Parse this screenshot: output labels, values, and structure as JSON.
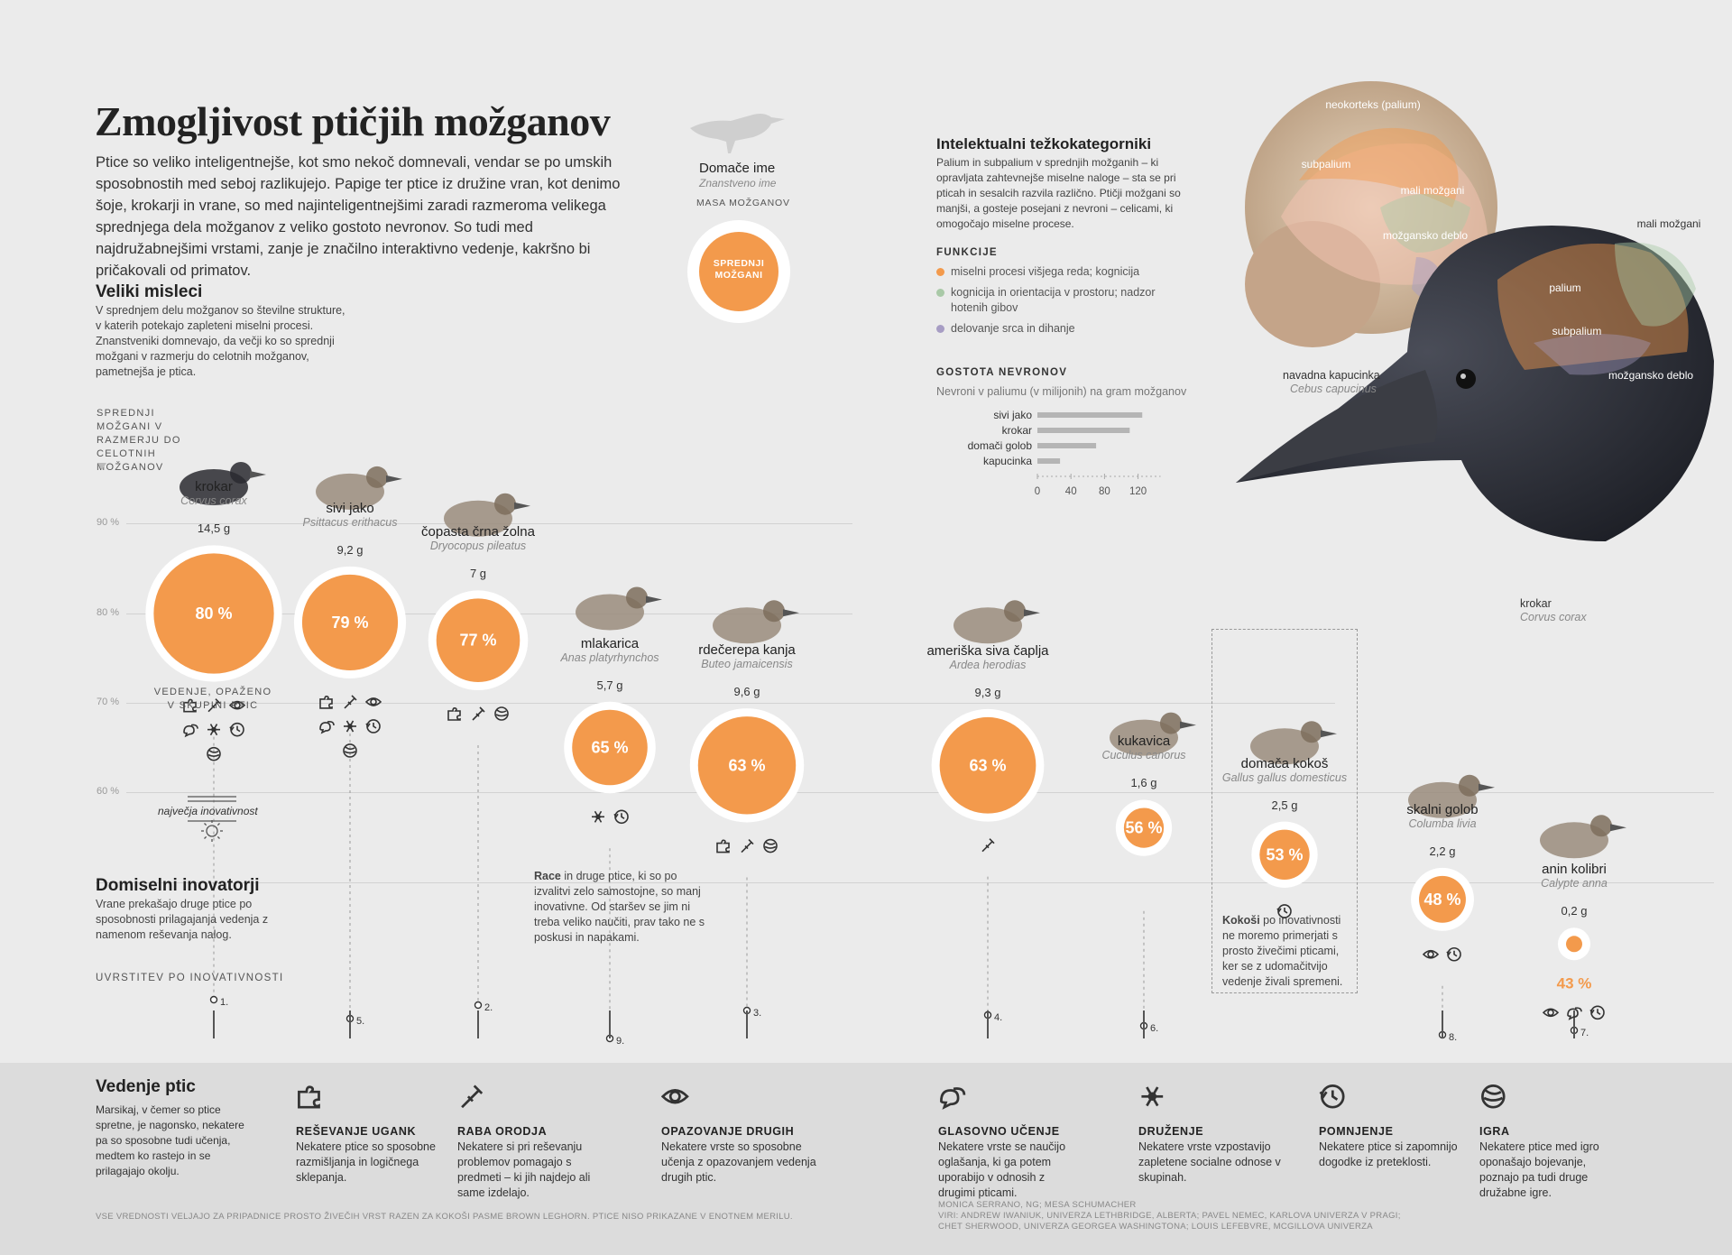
{
  "header": {
    "title": "Zmogljivost ptičjih možganov",
    "intro": "Ptice so veliko inteligentnejše, kot smo nekoč domnevali, vendar se po umskih sposobnostih med seboj razlikujejo. Papige ter ptice iz družine vran, kot denimo šoje, krokarji in vrane, so med najinteligentnejšimi zaradi razmeroma velikega sprednjega dela možganov z veliko gostoto nevronov. So tudi med najdružabnejšimi vrstami, zanje je značilno interaktivno vedenje, kakršno bi pričakovali od primatov."
  },
  "key": {
    "common_name": "Domače ime",
    "latin_name": "Znanstveno ime",
    "mass_label": "MASA MOŽGANOV",
    "circle_label": "SPREDNJI MOŽGANI"
  },
  "thinkers": {
    "title": "Veliki misleci",
    "text": "V sprednjem delu možganov so številne strukture, v katerih potekajo zapleteni miselni procesi. Znanstveniki domnevajo, da večji ko so sprednji možgani v razmerju do celotnih možganov, pametnejša je ptica."
  },
  "innovators": {
    "title": "Domiselni inovatorji",
    "text": "Vrane prekašajo druge ptice po sposobnosti prilagajanja vedenja z namenom reševanja nalog."
  },
  "heavyweights": {
    "title": "Intelektualni težkokategorniki",
    "text": "Palium in subpalium v sprednjih možganih – ki opravljata zahtevnejše miselne naloge – sta se pri pticah in sesalcih razvila različno. Ptičji možgani so manjši, a gosteje posejani z nevroni – celicami, ki omogočajo miselne procese.",
    "functions_title": "FUNKCIJE",
    "functions": [
      {
        "text": "miselni procesi višjega reda; kognicija",
        "color": "#f39a4c"
      },
      {
        "text": "kognicija in orientacija v prostoru; nadzor hotenih gibov",
        "color": "#a9c9a7"
      },
      {
        "text": "delovanje srca in dihanje",
        "color": "#a79dc4"
      }
    ]
  },
  "brain_labels": {
    "neocortex": "neokorteks (palium)",
    "subpalium": "subpalium",
    "mali": "mali možgani",
    "deblo": "možgansko deblo",
    "monkey_name": "navadna kapucinka",
    "monkey_latin": "Cebus capucinus",
    "crow_mali": "mali možgani",
    "crow_palium": "palium",
    "crow_subpalium": "subpalium",
    "crow_deblo": "možgansko deblo",
    "crow_name": "krokar",
    "crow_latin": "Corvus corax"
  },
  "y_axis": {
    "title": "SPREDNJI MOŽGANI V RAZMERJU DO CELOTNIH MOŽGANOV",
    "ticks": [
      "90 %",
      "80 %",
      "70 %",
      "60 %"
    ]
  },
  "birds": [
    {
      "name": "krokar",
      "latin": "Corvus corax",
      "mass": "14,5 g",
      "pct_label": "80 %",
      "icons": [
        "puzzle-icon",
        "tool-icon",
        "eye-icon",
        "speech-icon",
        "social-icon",
        "memory-icon",
        "play-icon"
      ],
      "rank": "1."
    },
    {
      "name": "sivi jako",
      "latin": "Psittacus erithacus",
      "mass": "9,2 g",
      "pct_label": "79 %",
      "icons": [
        "puzzle-icon",
        "tool-icon",
        "eye-icon",
        "speech-icon",
        "social-icon",
        "memory-icon",
        "play-icon"
      ],
      "rank": "5."
    },
    {
      "name": "čopasta črna žolna",
      "latin": "Dryocopus pileatus",
      "mass": "7 g",
      "pct_label": "77 %",
      "icons": [
        "puzzle-icon",
        "tool-icon",
        "play-icon"
      ],
      "rank": "2."
    },
    {
      "name": "mlakarica",
      "latin": "Anas platyrhynchos",
      "mass": "5,7 g",
      "pct_label": "65 %",
      "icons": [
        "social-icon",
        "memory-icon"
      ],
      "rank": "9."
    },
    {
      "name": "rdečerepa kanja",
      "latin": "Buteo jamaicensis",
      "mass": "9,6 g",
      "pct_label": "63 %",
      "icons": [
        "puzzle-icon",
        "tool-icon",
        "play-icon"
      ],
      "rank": "3."
    },
    {
      "name": "ameriška siva čaplja",
      "latin": "Ardea herodias",
      "mass": "9,3 g",
      "pct_label": "63 %",
      "icons": [
        "tool-icon"
      ],
      "rank": "4."
    },
    {
      "name": "kukavica",
      "latin": "Cuculus canorus",
      "mass": "1,6 g",
      "pct_label": "56 %",
      "icons": [],
      "rank": "6."
    },
    {
      "name": "domača kokoš",
      "latin": "Gallus gallus domesticus",
      "mass": "2,5 g",
      "pct_label": "53 %",
      "icons": [
        "memory-icon"
      ],
      "rank": ""
    },
    {
      "name": "skalni golob",
      "latin": "Columba livia",
      "mass": "2,2 g",
      "pct_label": "48 %",
      "icons": [
        "eye-icon",
        "memory-icon"
      ],
      "rank": "8."
    },
    {
      "name": "anin kolibri",
      "latin": "Calypte anna",
      "mass": "0,2 g",
      "pct_label": "43 %",
      "icons": [
        "eye-icon",
        "speech-icon",
        "memory-icon"
      ],
      "rank": "7."
    }
  ],
  "chart_notes": {
    "observed": "VEDENJE, OPAŽENO V SKUPINI PTIC",
    "most_innovative": "največja inovativnost",
    "rank_title": "UVRSTITEV PO INOVATIVNOSTI",
    "race_bold": "Race",
    "race_text": " in druge ptice, ki so po izvalitvi zelo samostojne, so manj inovativne. Od staršev se jim ni treba veliko naučiti, prav tako ne s poskusi in napakami.",
    "hen_bold": "Kokoši",
    "hen_text": " po inovativnosti ne moremo primerjati s prosto živečimi pticami, ker se z udomačitvijo vedenje živali spremeni."
  },
  "density_chart_labels": {
    "title": "GOSTOTA NEVRONOV",
    "subtitle": "Nevroni v paliumu (v milijonih) na gram možganov",
    "ticks": [
      "0",
      "40",
      "80",
      "120"
    ]
  },
  "chart_data": [
    {
      "type": "scatter",
      "title": "",
      "ylabel": "SPREDNJI MOŽGANI V RAZMERJU DO CELOTNIH MOŽGANOV",
      "ylim": [
        40,
        92
      ],
      "categories": [
        "krokar",
        "sivi jako",
        "čopasta črna žolna",
        "mlakarica",
        "rdečerepa kanja",
        "ameriška siva čaplja",
        "kukavica",
        "domača kokoš",
        "skalni golob",
        "anin kolibri"
      ],
      "forebrain_pct": [
        80,
        79,
        77,
        65,
        63,
        63,
        56,
        53,
        48,
        43
      ],
      "brain_mass_g": [
        14.5,
        9.2,
        7,
        5.7,
        9.6,
        9.3,
        1.6,
        2.5,
        2.2,
        0.2
      ],
      "innovation_rank": [
        1,
        5,
        2,
        9,
        3,
        4,
        6,
        null,
        8,
        7
      ]
    },
    {
      "type": "bar",
      "title": "GOSTOTA NEVRONOV",
      "xlabel": "Nevroni v paliumu (v milijonih) na gram možganov",
      "categories": [
        "sivi jako",
        "krokar",
        "domači golob",
        "kapucinka"
      ],
      "values": [
        125,
        110,
        70,
        27
      ],
      "xlim": [
        0,
        120
      ]
    }
  ],
  "behaviours": {
    "title": "Vedenje ptic",
    "intro": "Marsikaj, v čemer so ptice spretne, je nagonsko, nekatere pa so sposobne tudi učenja, medtem ko rastejo in se prilagajajo okolju.",
    "items": [
      {
        "title": "REŠEVANJE UGANK",
        "text": "Nekatere ptice so sposobne razmišljanja in logičnega sklepanja."
      },
      {
        "title": "RABA ORODJA",
        "text": "Nekatere si pri reševanju problemov pomagajo s predmeti – ki jih najdejo ali same izdelajo."
      },
      {
        "title": "OPAZOVANJE DRUGIH",
        "text": "Nekatere vrste so sposobne učenja z opazovanjem vedenja drugih ptic."
      },
      {
        "title": "GLASOVNO UČENJE",
        "text": "Nekatere vrste se naučijo oglašanja, ki ga potem uporabijo v odnosih z drugimi pticami."
      },
      {
        "title": "DRUŽENJE",
        "text": "Nekatere vrste vzpostavijo zapletene socialne odnose v skupinah."
      },
      {
        "title": "POMNJENJE",
        "text": "Nekatere ptice si zapomnijo dogodke iz preteklosti."
      },
      {
        "title": "IGRA",
        "text": "Nekatere ptice med igro oponašajo bojevanje, poznajo pa tudi druge družabne igre."
      }
    ]
  },
  "footer": {
    "note": "VSE VREDNOSTI VELJAJO ZA PRIPADNICE PROSTO ŽIVEČIH VRST RAZEN ZA KOKOŠI PASME BROWN LEGHORN. PTICE NISO PRIKAZANE V ENOTNEM MERILU.",
    "credits1": "MONICA SERRANO, NG; MESA SCHUMACHER",
    "credits2": "VIRI: ANDREW IWANIUK, UNIVERZA LETHBRIDGE, ALBERTA; PAVEL NEMEC, KARLOVA UNIVERZA V PRAGI;",
    "credits3": "CHET SHERWOOD, UNIVERZA GEORGEA WASHINGTONA; LOUIS LEFEBVRE, MCGILLOVA UNIVERZA"
  },
  "colors": {
    "accent": "#f39a4c",
    "ring": "#ffffff",
    "line": "#d6d6d6",
    "text": "#333333"
  }
}
